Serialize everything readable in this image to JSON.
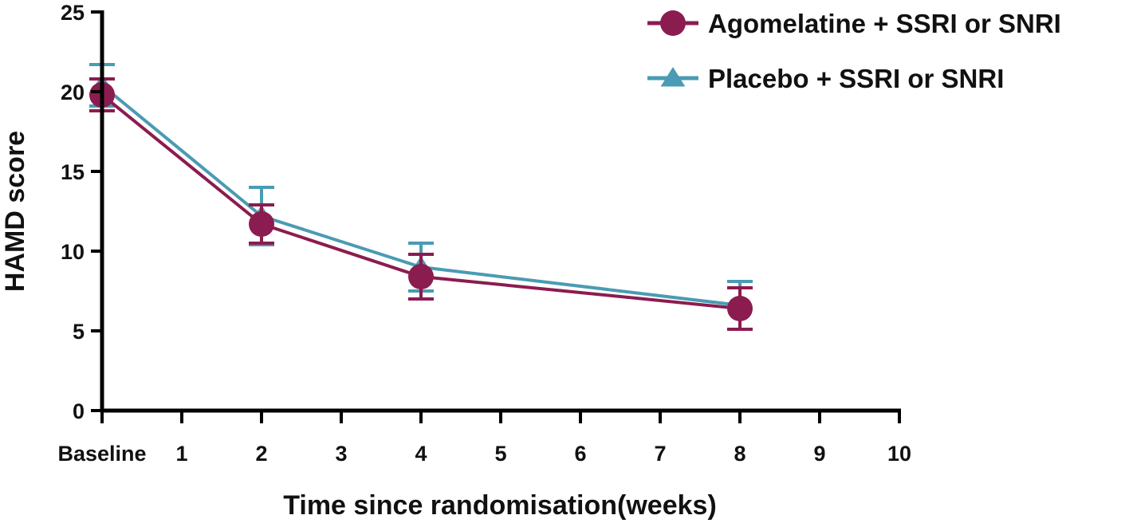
{
  "chart_data": {
    "type": "line",
    "title": "",
    "xlabel": "Time since randomisation(weeks)",
    "ylabel": "HAMD score",
    "xlim": [
      0,
      10
    ],
    "ylim": [
      0,
      25
    ],
    "x_ticks": [
      {
        "value": 0,
        "label": "Baseline"
      },
      {
        "value": 1,
        "label": "1"
      },
      {
        "value": 2,
        "label": "2"
      },
      {
        "value": 3,
        "label": "3"
      },
      {
        "value": 4,
        "label": "4"
      },
      {
        "value": 5,
        "label": "5"
      },
      {
        "value": 6,
        "label": "6"
      },
      {
        "value": 7,
        "label": "7"
      },
      {
        "value": 8,
        "label": "8"
      },
      {
        "value": 9,
        "label": "9"
      },
      {
        "value": 10,
        "label": "10"
      }
    ],
    "y_ticks": [
      0,
      5,
      10,
      15,
      20,
      25
    ],
    "grid": false,
    "legend_position": "top-right",
    "series": [
      {
        "name": "Placebo + SSRI or SNRI",
        "color": "#4a9bb3",
        "marker": "triangle",
        "x": [
          0,
          2,
          4,
          8
        ],
        "y": [
          20.4,
          12.2,
          9.0,
          6.6
        ],
        "error": [
          1.3,
          1.8,
          1.5,
          1.5
        ]
      },
      {
        "name": "Agomelatine + SSRI or SNRI",
        "color": "#8b1c4f",
        "marker": "circle",
        "x": [
          0,
          2,
          4,
          8
        ],
        "y": [
          19.8,
          11.7,
          8.4,
          6.4
        ],
        "error": [
          1.0,
          1.2,
          1.4,
          1.3
        ]
      }
    ]
  }
}
